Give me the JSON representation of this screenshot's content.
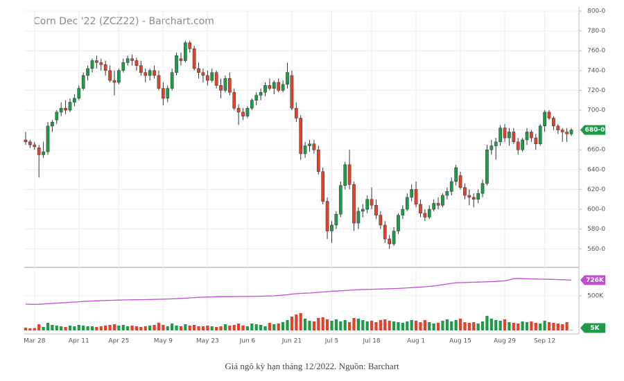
{
  "caption": "Giá ngô kỳ hạn tháng 12/2022. Nguồn: Barchart",
  "chart_data": {
    "type": "candlestick",
    "title": "Corn Dec '22 (ZCZ22) - Barchart.com",
    "categories": [
      null,
      null,
      "Mar 28",
      null,
      null,
      null,
      null,
      null,
      null,
      null,
      null,
      null,
      "Apr 11",
      null,
      null,
      null,
      null,
      null,
      null,
      null,
      null,
      "Apr 25",
      null,
      null,
      null,
      null,
      null,
      null,
      null,
      null,
      null,
      "May 9",
      null,
      null,
      null,
      null,
      null,
      null,
      null,
      null,
      null,
      "May 23",
      null,
      null,
      null,
      null,
      null,
      null,
      null,
      null,
      "Jun 6",
      null,
      null,
      null,
      null,
      null,
      null,
      null,
      null,
      null,
      "Jun 21",
      null,
      null,
      null,
      null,
      null,
      null,
      null,
      null,
      "Jul 5",
      null,
      null,
      null,
      null,
      null,
      null,
      null,
      null,
      "Jul 18",
      null,
      null,
      null,
      null,
      null,
      null,
      null,
      null,
      null,
      "Aug 1",
      null,
      null,
      null,
      null,
      null,
      null,
      null,
      null,
      null,
      "Aug 15",
      null,
      null,
      null,
      null,
      null,
      null,
      null,
      null,
      null,
      "Aug 29",
      null,
      null,
      null,
      null,
      null,
      null,
      null,
      null,
      "Sep 12",
      null,
      null,
      null,
      null,
      null,
      null
    ],
    "candles": {
      "open": [
        670,
        668,
        665,
        662,
        655,
        658,
        684,
        690,
        698,
        702,
        700,
        708,
        712,
        722,
        735,
        742,
        750,
        748,
        746,
        740,
        730,
        728,
        740,
        748,
        752,
        750,
        745,
        738,
        735,
        740,
        735,
        722,
        712,
        722,
        738,
        752,
        750,
        768,
        762,
        742,
        738,
        735,
        730,
        738,
        725,
        720,
        732,
        718,
        702,
        698,
        694,
        702,
        710,
        715,
        718,
        725,
        722,
        728,
        720,
        726,
        735,
        702,
        692,
        656,
        664,
        666,
        660,
        638,
        608,
        578,
        584,
        595,
        624,
        645,
        625,
        586,
        598,
        600,
        610,
        604,
        594,
        584,
        570,
        565,
        578,
        594,
        600,
        612,
        620,
        605,
        596,
        592,
        600,
        606,
        604,
        614,
        618,
        628,
        634,
        622,
        614,
        612,
        610,
        616,
        626,
        660,
        664,
        668,
        682,
        672,
        678,
        668,
        660,
        670,
        678,
        672,
        666,
        684,
        698,
        692,
        684,
        680,
        678,
        676
      ],
      "high": [
        678,
        670,
        668,
        665,
        668,
        688,
        690,
        700,
        708,
        710,
        712,
        716,
        725,
        738,
        745,
        752,
        755,
        752,
        750,
        745,
        740,
        742,
        752,
        755,
        756,
        753,
        750,
        742,
        742,
        745,
        740,
        728,
        725,
        742,
        758,
        758,
        770,
        770,
        765,
        748,
        742,
        740,
        742,
        740,
        732,
        735,
        738,
        722,
        706,
        702,
        704,
        712,
        718,
        722,
        728,
        732,
        730,
        732,
        730,
        748,
        740,
        708,
        695,
        668,
        670,
        670,
        664,
        642,
        612,
        588,
        598,
        628,
        648,
        660,
        628,
        602,
        605,
        614,
        622,
        610,
        598,
        588,
        574,
        582,
        596,
        604,
        616,
        625,
        628,
        610,
        600,
        604,
        610,
        612,
        616,
        622,
        632,
        645,
        638,
        626,
        620,
        616,
        620,
        630,
        665,
        670,
        672,
        685,
        686,
        682,
        682,
        672,
        672,
        682,
        680,
        676,
        686,
        700,
        700,
        694,
        686,
        682,
        682,
        682
      ],
      "low": [
        665,
        662,
        660,
        632,
        652,
        655,
        678,
        686,
        694,
        696,
        698,
        704,
        710,
        720,
        730,
        738,
        742,
        740,
        735,
        728,
        715,
        726,
        738,
        745,
        745,
        740,
        735,
        728,
        730,
        732,
        720,
        705,
        708,
        720,
        735,
        745,
        748,
        758,
        740,
        732,
        728,
        725,
        728,
        722,
        712,
        718,
        715,
        700,
        685,
        690,
        692,
        700,
        705,
        710,
        714,
        720,
        716,
        718,
        718,
        722,
        700,
        688,
        650,
        652,
        658,
        656,
        635,
        605,
        570,
        566,
        580,
        592,
        620,
        620,
        578,
        580,
        592,
        596,
        600,
        590,
        580,
        566,
        560,
        563,
        575,
        590,
        598,
        608,
        602,
        592,
        588,
        590,
        598,
        600,
        602,
        610,
        614,
        624,
        620,
        610,
        604,
        602,
        606,
        612,
        624,
        655,
        650,
        664,
        668,
        664,
        666,
        655,
        658,
        665,
        668,
        660,
        664,
        678,
        690,
        680,
        676,
        668,
        668,
        674
      ],
      "close": [
        668,
        665,
        663,
        655,
        658,
        684,
        688,
        698,
        702,
        700,
        708,
        712,
        722,
        735,
        742,
        750,
        748,
        746,
        740,
        730,
        728,
        740,
        748,
        752,
        750,
        745,
        738,
        735,
        740,
        735,
        722,
        712,
        722,
        738,
        755,
        750,
        768,
        762,
        742,
        738,
        735,
        730,
        738,
        725,
        720,
        732,
        718,
        702,
        698,
        694,
        702,
        710,
        715,
        718,
        725,
        722,
        728,
        720,
        726,
        738,
        702,
        692,
        656,
        664,
        666,
        660,
        638,
        608,
        578,
        584,
        595,
        624,
        645,
        625,
        586,
        598,
        600,
        610,
        604,
        594,
        584,
        570,
        565,
        578,
        594,
        600,
        612,
        620,
        605,
        596,
        592,
        600,
        606,
        604,
        614,
        618,
        628,
        642,
        622,
        614,
        612,
        610,
        616,
        626,
        660,
        664,
        668,
        682,
        672,
        678,
        668,
        660,
        670,
        678,
        672,
        666,
        684,
        698,
        692,
        684,
        680,
        678,
        676,
        680
      ],
      "last_label": "680-0",
      "up_color": "#1f9a48",
      "down_color": "#e2412b"
    },
    "volume": {
      "values": [
        40000,
        30000,
        35000,
        90000,
        50000,
        110000,
        80000,
        70000,
        60000,
        50000,
        70000,
        60000,
        80000,
        70000,
        60000,
        60000,
        50000,
        60000,
        70000,
        80000,
        90000,
        70000,
        80000,
        60000,
        70000,
        60000,
        50000,
        60000,
        70000,
        80000,
        110000,
        80000,
        60000,
        100000,
        70000,
        60000,
        90000,
        70000,
        80000,
        60000,
        60000,
        70000,
        60000,
        50000,
        60000,
        90000,
        70000,
        80000,
        100000,
        70000,
        60000,
        100000,
        90000,
        80000,
        60000,
        110000,
        90000,
        100000,
        120000,
        150000,
        200000,
        230000,
        250000,
        170000,
        140000,
        130000,
        180000,
        190000,
        160000,
        140000,
        160000,
        130000,
        150000,
        120000,
        180000,
        170000,
        150000,
        130000,
        140000,
        120000,
        150000,
        160000,
        140000,
        130000,
        120000,
        110000,
        130000,
        150000,
        140000,
        120000,
        150000,
        120000,
        100000,
        110000,
        140000,
        160000,
        130000,
        150000,
        170000,
        120000,
        110000,
        120000,
        100000,
        130000,
        210000,
        170000,
        150000,
        140000,
        160000,
        120000,
        110000,
        100000,
        130000,
        120000,
        130000,
        110000,
        100000,
        140000,
        120000,
        110000,
        100000,
        90000,
        120000,
        5000
      ],
      "last_label": "5K"
    },
    "open_interest": {
      "values": [
        380000,
        378000,
        376000,
        378000,
        382000,
        386000,
        390000,
        394000,
        398000,
        402000,
        406000,
        410000,
        414000,
        418000,
        422000,
        425000,
        428000,
        430000,
        432000,
        434000,
        436000,
        438000,
        440000,
        441000,
        442000,
        443000,
        444000,
        445000,
        446000,
        448000,
        450000,
        452000,
        454000,
        456000,
        458000,
        462000,
        466000,
        470000,
        474000,
        478000,
        480000,
        482000,
        484000,
        486000,
        487000,
        488000,
        488000,
        489000,
        489000,
        490000,
        490000,
        491000,
        492000,
        494000,
        496000,
        498000,
        500000,
        505000,
        510000,
        515000,
        525000,
        530000,
        535000,
        538000,
        540000,
        545000,
        550000,
        555000,
        560000,
        565000,
        568000,
        572000,
        576000,
        580000,
        584000,
        588000,
        590000,
        592000,
        594000,
        596000,
        598000,
        600000,
        602000,
        604000,
        606000,
        610000,
        614000,
        618000,
        622000,
        626000,
        630000,
        636000,
        642000,
        650000,
        660000,
        670000,
        680000,
        688000,
        690000,
        692000,
        694000,
        696000,
        698000,
        700000,
        702000,
        705000,
        708000,
        712000,
        716000,
        730000,
        748000,
        750000,
        748000,
        746000,
        744000,
        742000,
        740000,
        740000,
        738000,
        736000,
        734000,
        732000,
        730000,
        726000
      ],
      "last_label": "726K",
      "color": "#c04fd0"
    },
    "ylim": [
      542,
      800
    ],
    "yticks": [
      {
        "value": 560,
        "label": "560-0"
      },
      {
        "value": 580,
        "label": "580-0"
      },
      {
        "value": 600,
        "label": "600-0"
      },
      {
        "value": 620,
        "label": "620-0"
      },
      {
        "value": 640,
        "label": "640-0"
      },
      {
        "value": 660,
        "label": "660-0"
      },
      {
        "value": 680,
        "label": "680-0"
      },
      {
        "value": 700,
        "label": "700-0"
      },
      {
        "value": 720,
        "label": "720-0"
      },
      {
        "value": 740,
        "label": "740-0"
      },
      {
        "value": 760,
        "label": "760-0"
      },
      {
        "value": 780,
        "label": "780-0"
      },
      {
        "value": 800,
        "label": "800-0"
      }
    ],
    "y2lim": [
      0,
      900000
    ],
    "y2ticks": [
      {
        "value": 500000,
        "label": "500K"
      }
    ],
    "grid": true
  }
}
